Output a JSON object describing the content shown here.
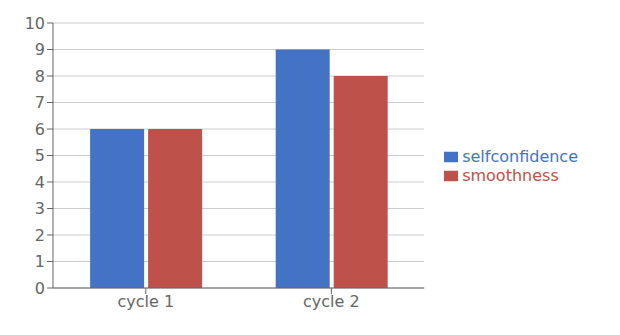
{
  "chart_data": {
    "type": "bar",
    "categories": [
      "cycle 1",
      "cycle 2"
    ],
    "series": [
      {
        "name": "selfconfidence",
        "color": "#4472C4",
        "values": [
          6,
          9
        ]
      },
      {
        "name": "smoothness",
        "color": "#BE514A",
        "values": [
          6,
          8
        ]
      }
    ],
    "ylim": [
      0,
      10
    ],
    "yticks": [
      0,
      1,
      2,
      3,
      4,
      5,
      6,
      7,
      8,
      9,
      10
    ],
    "grid": true,
    "legend": "right"
  }
}
